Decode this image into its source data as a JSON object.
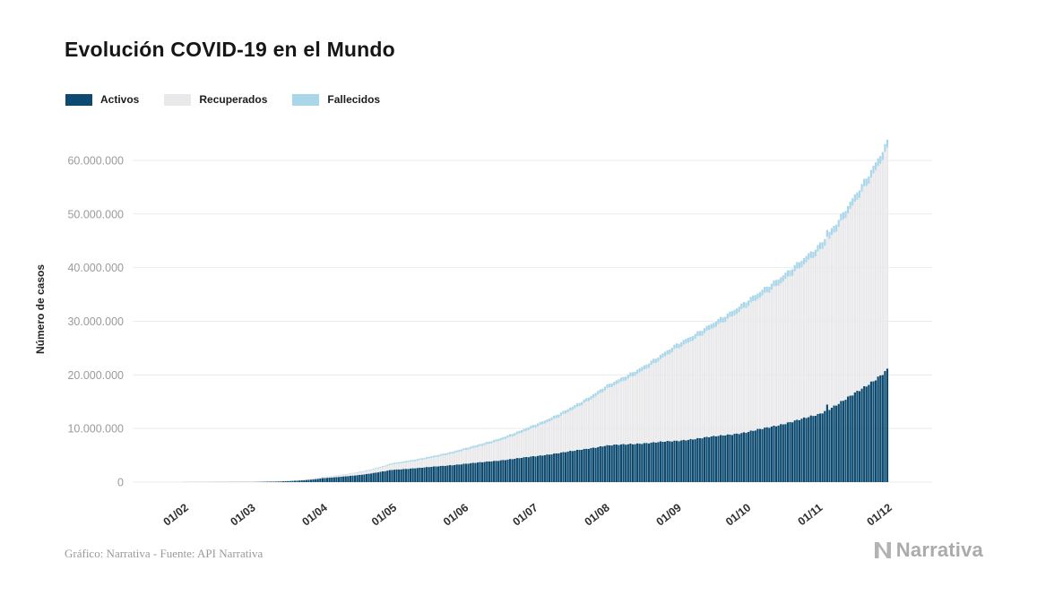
{
  "chart_data": {
    "type": "bar",
    "stacked": true,
    "title": "Evolución COVID-19 en el Mundo",
    "ylabel": "Número de casos",
    "xlabel": "",
    "grid": "horizontal",
    "legend_position": "top-left",
    "x_tick_labels": [
      "01/02",
      "01/03",
      "01/04",
      "01/05",
      "01/06",
      "01/07",
      "01/08",
      "01/09",
      "01/10",
      "01/11",
      "01/12"
    ],
    "month_day_offsets": [
      0,
      29,
      60,
      90,
      121,
      151,
      182,
      213,
      243,
      274,
      304
    ],
    "total_days": 304,
    "ylim": [
      0,
      64000000
    ],
    "y_ticks": [
      {
        "value": 0,
        "label": "0"
      },
      {
        "value": 10000000,
        "label": "10.000.000"
      },
      {
        "value": 20000000,
        "label": "20.000.000"
      },
      {
        "value": 30000000,
        "label": "30.000.000"
      },
      {
        "value": 40000000,
        "label": "40.000.000"
      },
      {
        "value": 50000000,
        "label": "50.000.000"
      },
      {
        "value": 60000000,
        "label": "60.000.000"
      }
    ],
    "series": [
      {
        "name": "Activos",
        "color": "#0d4a70",
        "monthly_values": [
          11000,
          45000,
          750000,
          2300000,
          3400000,
          4800000,
          6800000,
          7700000,
          9300000,
          12600000,
          21000000
        ]
      },
      {
        "name": "Recuperados",
        "color": "#e9e9eb",
        "monthly_values": [
          500,
          40000,
          190000,
          1000000,
          2500000,
          5300000,
          10400000,
          17200000,
          23400000,
          30100000,
          41000000
        ]
      },
      {
        "name": "Fallecidos",
        "color": "#a9d6e8",
        "monthly_values": [
          300,
          3000,
          47000,
          240000,
          375000,
          515000,
          680000,
          850000,
          1040000,
          1230000,
          1480000
        ]
      }
    ]
  },
  "footer": {
    "source": "Gráfico: Narrativa - Fuente: API Narrativa",
    "brand": "Narrativa"
  }
}
